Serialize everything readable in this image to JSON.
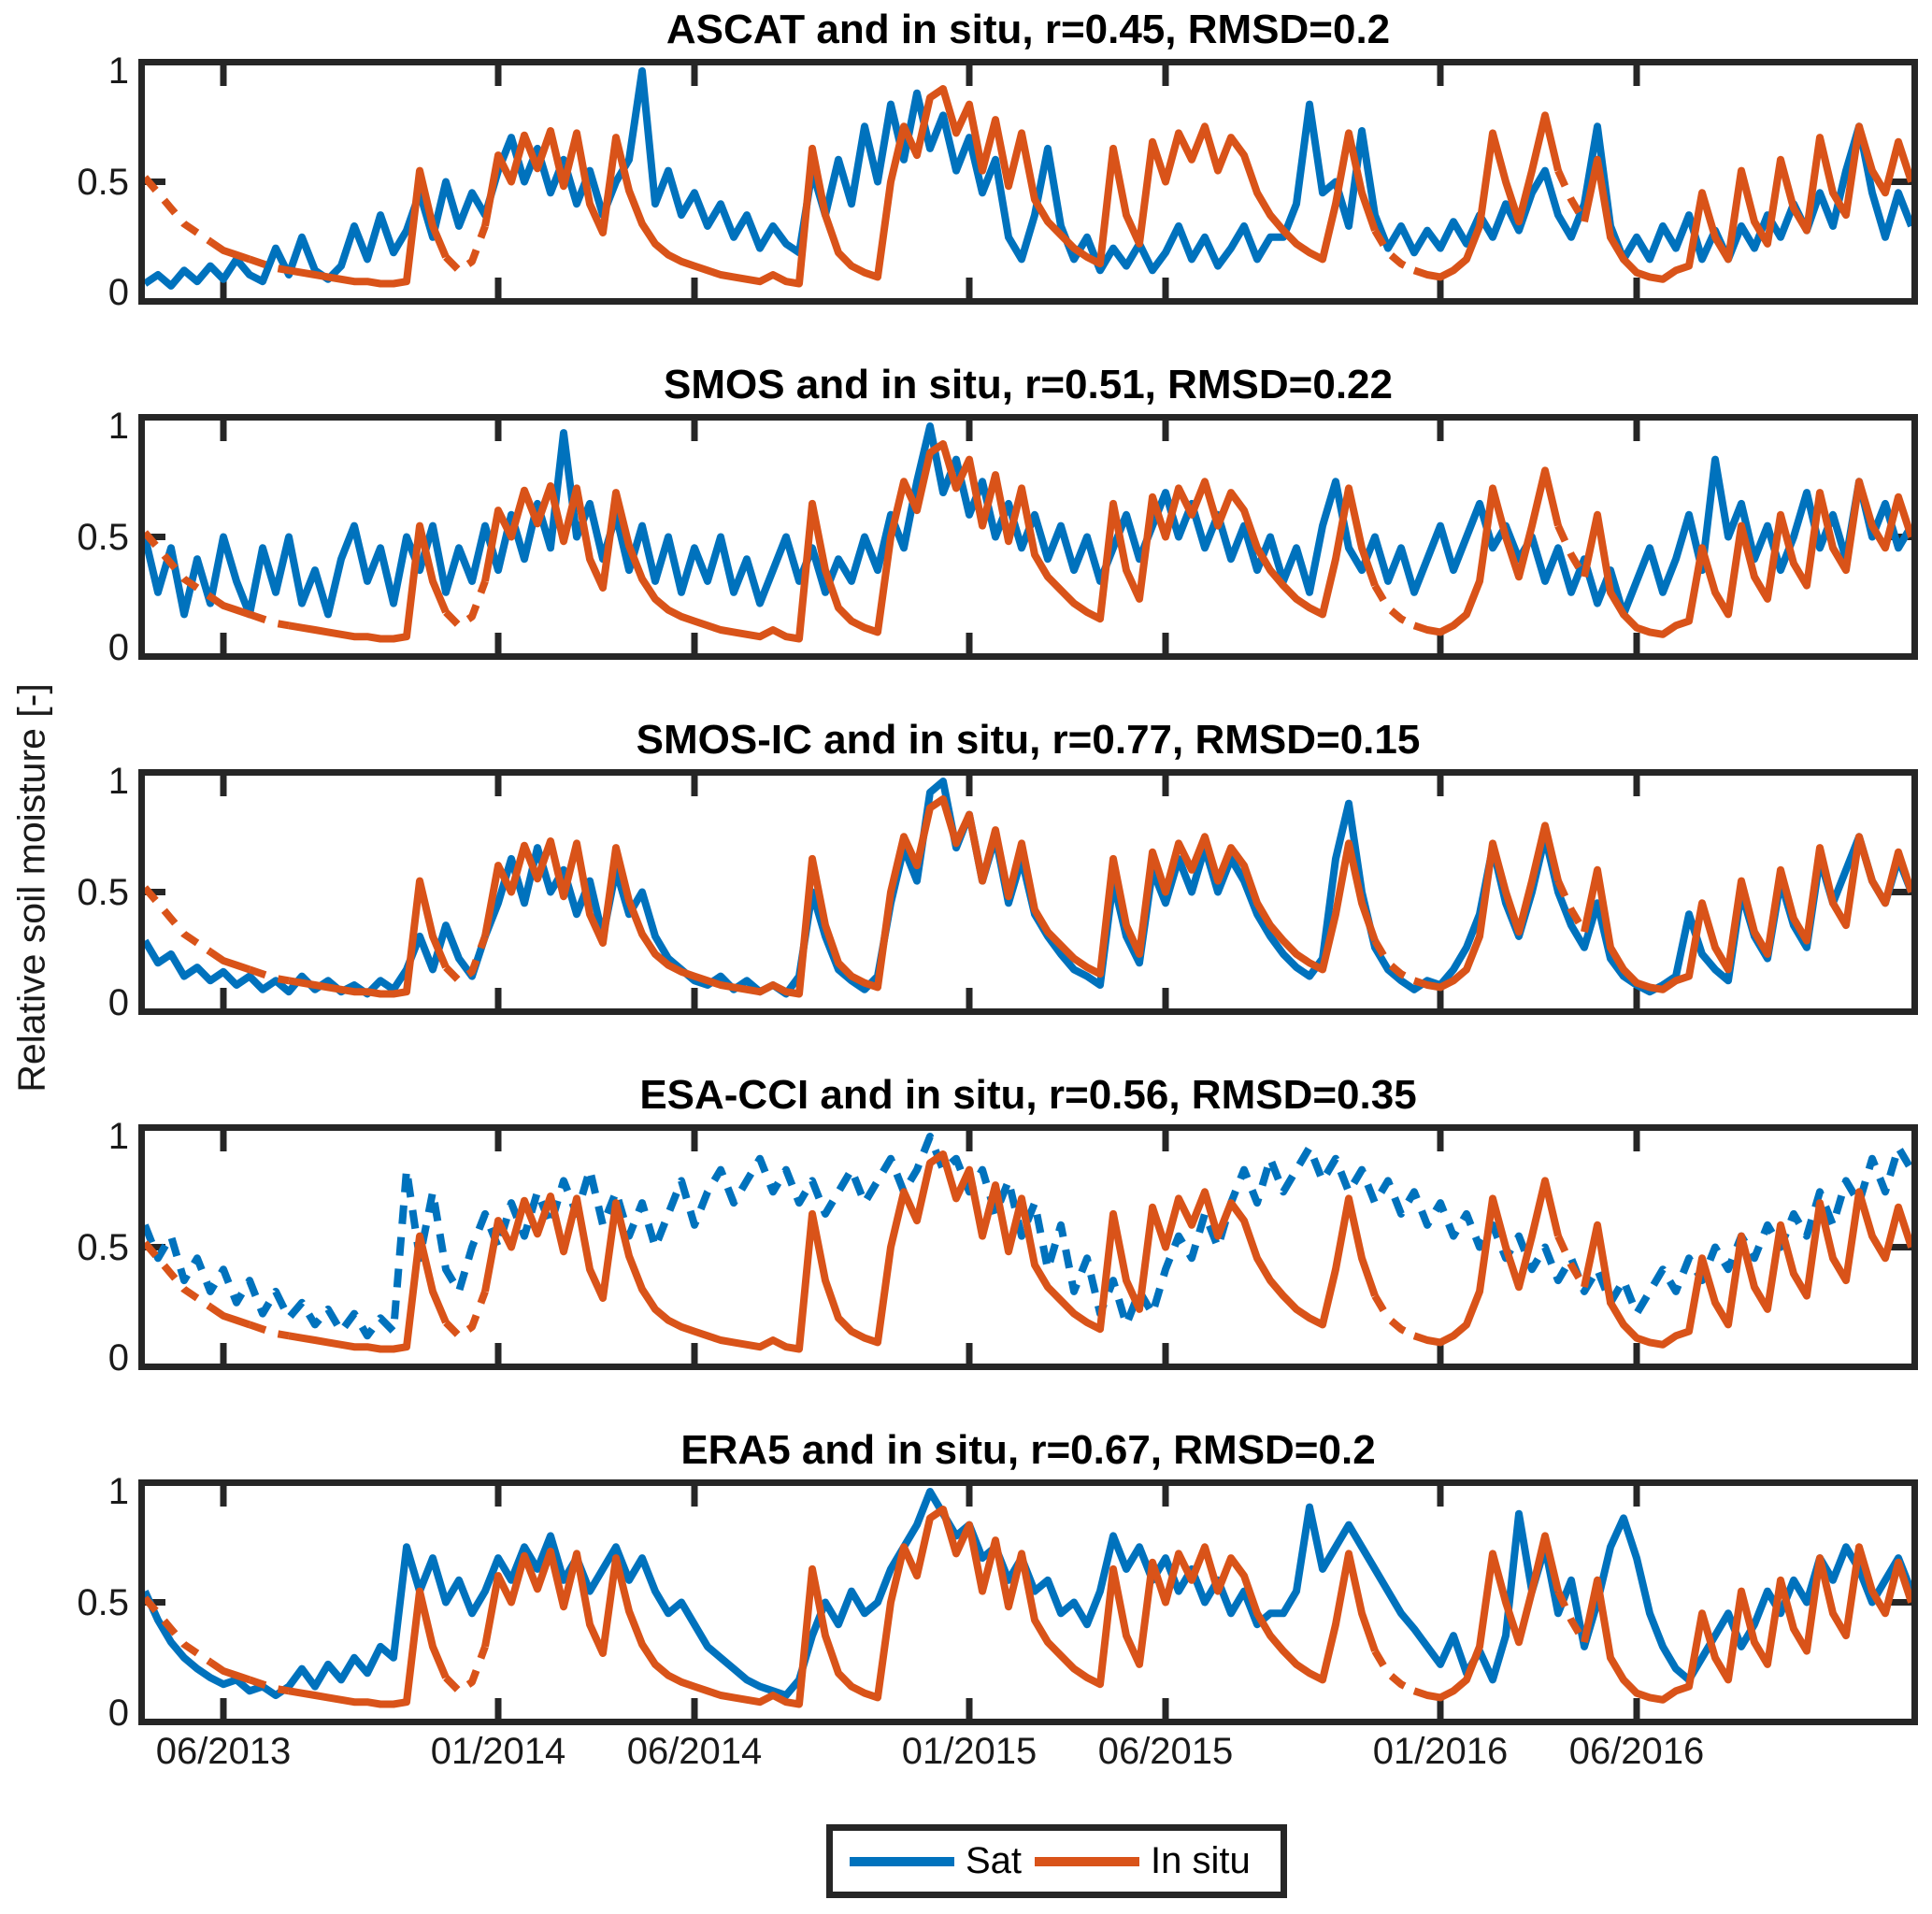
{
  "figure": {
    "y_axis_label": "Relative soil moisture [-]",
    "y_tick_labels": [
      "1",
      "0.5",
      "0"
    ],
    "y_tick_values": [
      1,
      0.5,
      0
    ]
  },
  "legend": {
    "sat_label": "Sat",
    "insitu_label": "In situ"
  },
  "colors": {
    "sat_line": "#0072BD",
    "insitu_line": "#D95319",
    "axes_frame": "#262626",
    "text": "#000000",
    "background": "#FFFFFF"
  },
  "chart_data": {
    "type": "line",
    "x_unit": "months since 2013-04 (x axis spans ~04/2013 to ~12/2016)",
    "x_range": [
      0,
      45
    ],
    "y_range": [
      0,
      1
    ],
    "grid": false,
    "legend_position": "below-figure",
    "x_ticks": [
      {
        "t": 2,
        "label": "06/2013"
      },
      {
        "t": 9,
        "label": "01/2014"
      },
      {
        "t": 14,
        "label": "06/2014"
      },
      {
        "t": 21,
        "label": "01/2015"
      },
      {
        "t": 26,
        "label": "06/2015"
      },
      {
        "t": 33,
        "label": "01/2016"
      },
      {
        "t": 38,
        "label": "06/2016"
      }
    ],
    "x_tick_labels": [
      "06/2013",
      "01/2014",
      "06/2014",
      "01/2015",
      "06/2015",
      "01/2016",
      "06/2016"
    ],
    "sample_step_months": 0.3333,
    "series_legend": [
      "Sat",
      "In situ"
    ],
    "subplots": [
      {
        "title": "ASCAT and in situ, r=0.45, RMSD=0.2",
        "r": 0.45,
        "rmsd": 0.2,
        "sat_series": "ascat",
        "sat_dashed": false
      },
      {
        "title": "SMOS and in situ, r=0.51, RMSD=0.22",
        "r": 0.51,
        "rmsd": 0.22,
        "sat_series": "smos",
        "sat_dashed": false
      },
      {
        "title": "SMOS-IC and in situ,  r=0.77, RMSD=0.15",
        "r": 0.77,
        "rmsd": 0.15,
        "sat_series": "smos_ic",
        "sat_dashed": false
      },
      {
        "title": "ESA-CCI and in situ, r=0.56, RMSD=0.35",
        "r": 0.56,
        "rmsd": 0.35,
        "sat_series": "esa_cci",
        "sat_dashed": true
      },
      {
        "title": "ERA5 and in situ, r=0.67, RMSD=0.2",
        "r": 0.67,
        "rmsd": 0.2,
        "sat_series": "era5",
        "sat_dashed": false
      }
    ],
    "in_situ_dash_segments": [
      [
        0,
        1.8
      ],
      [
        2.6,
        3.5
      ],
      [
        7.7,
        8.5
      ],
      [
        31.2,
        32.2
      ],
      [
        36.0,
        36.8
      ]
    ],
    "series_values": {
      "in_situ": [
        0.52,
        0.45,
        0.38,
        0.31,
        0.27,
        0.23,
        0.19,
        0.17,
        0.15,
        0.13,
        0.11,
        0.1,
        0.09,
        0.08,
        0.07,
        0.06,
        0.05,
        0.05,
        0.04,
        0.04,
        0.05,
        0.55,
        0.3,
        0.16,
        0.1,
        0.14,
        0.3,
        0.62,
        0.5,
        0.71,
        0.56,
        0.73,
        0.48,
        0.72,
        0.4,
        0.27,
        0.7,
        0.46,
        0.31,
        0.22,
        0.17,
        0.14,
        0.12,
        0.1,
        0.08,
        0.07,
        0.06,
        0.05,
        0.08,
        0.05,
        0.04,
        0.65,
        0.35,
        0.18,
        0.12,
        0.09,
        0.07,
        0.5,
        0.75,
        0.62,
        0.88,
        0.92,
        0.72,
        0.85,
        0.55,
        0.78,
        0.48,
        0.72,
        0.42,
        0.32,
        0.26,
        0.2,
        0.16,
        0.13,
        0.65,
        0.35,
        0.22,
        0.68,
        0.5,
        0.72,
        0.6,
        0.75,
        0.55,
        0.7,
        0.62,
        0.45,
        0.35,
        0.28,
        0.22,
        0.18,
        0.15,
        0.4,
        0.72,
        0.45,
        0.28,
        0.18,
        0.13,
        0.1,
        0.08,
        0.07,
        0.1,
        0.15,
        0.3,
        0.72,
        0.5,
        0.32,
        0.55,
        0.8,
        0.55,
        0.42,
        0.32,
        0.6,
        0.25,
        0.15,
        0.09,
        0.07,
        0.06,
        0.1,
        0.12,
        0.45,
        0.25,
        0.15,
        0.55,
        0.32,
        0.22,
        0.6,
        0.38,
        0.28,
        0.7,
        0.45,
        0.35,
        0.75,
        0.55,
        0.45,
        0.68,
        0.5
      ],
      "ascat": [
        0.04,
        0.08,
        0.03,
        0.1,
        0.05,
        0.12,
        0.06,
        0.15,
        0.08,
        0.05,
        0.2,
        0.08,
        0.25,
        0.1,
        0.06,
        0.12,
        0.3,
        0.15,
        0.35,
        0.18,
        0.28,
        0.45,
        0.25,
        0.5,
        0.3,
        0.45,
        0.35,
        0.55,
        0.7,
        0.5,
        0.65,
        0.45,
        0.6,
        0.4,
        0.55,
        0.35,
        0.5,
        0.6,
        1.0,
        0.4,
        0.55,
        0.35,
        0.45,
        0.3,
        0.4,
        0.25,
        0.35,
        0.2,
        0.3,
        0.22,
        0.18,
        0.55,
        0.35,
        0.6,
        0.4,
        0.75,
        0.5,
        0.85,
        0.6,
        0.9,
        0.65,
        0.8,
        0.55,
        0.7,
        0.45,
        0.6,
        0.25,
        0.15,
        0.35,
        0.65,
        0.3,
        0.15,
        0.25,
        0.1,
        0.2,
        0.12,
        0.22,
        0.1,
        0.18,
        0.3,
        0.15,
        0.25,
        0.12,
        0.2,
        0.3,
        0.15,
        0.25,
        0.25,
        0.4,
        0.85,
        0.45,
        0.5,
        0.3,
        0.73,
        0.35,
        0.2,
        0.3,
        0.18,
        0.28,
        0.2,
        0.32,
        0.22,
        0.35,
        0.25,
        0.4,
        0.28,
        0.45,
        0.55,
        0.35,
        0.25,
        0.4,
        0.75,
        0.3,
        0.15,
        0.25,
        0.15,
        0.3,
        0.2,
        0.35,
        0.15,
        0.28,
        0.15,
        0.3,
        0.2,
        0.35,
        0.25,
        0.4,
        0.28,
        0.45,
        0.3,
        0.55,
        0.75,
        0.45,
        0.25,
        0.45,
        0.3
      ],
      "smos": [
        0.5,
        0.25,
        0.45,
        0.15,
        0.4,
        0.2,
        0.5,
        0.3,
        0.15,
        0.45,
        0.25,
        0.5,
        0.2,
        0.35,
        0.15,
        0.4,
        0.55,
        0.3,
        0.45,
        0.2,
        0.5,
        0.35,
        0.55,
        0.25,
        0.45,
        0.3,
        0.55,
        0.35,
        0.6,
        0.4,
        0.65,
        0.45,
        0.97,
        0.5,
        0.65,
        0.4,
        0.6,
        0.35,
        0.55,
        0.3,
        0.5,
        0.25,
        0.45,
        0.3,
        0.5,
        0.25,
        0.4,
        0.2,
        0.35,
        0.5,
        0.3,
        0.45,
        0.25,
        0.4,
        0.3,
        0.5,
        0.35,
        0.6,
        0.45,
        0.75,
        1.0,
        0.7,
        0.85,
        0.6,
        0.75,
        0.5,
        0.65,
        0.45,
        0.6,
        0.4,
        0.55,
        0.35,
        0.5,
        0.3,
        0.45,
        0.6,
        0.4,
        0.55,
        0.7,
        0.5,
        0.65,
        0.45,
        0.6,
        0.4,
        0.55,
        0.35,
        0.5,
        0.3,
        0.45,
        0.25,
        0.55,
        0.75,
        0.45,
        0.35,
        0.5,
        0.3,
        0.45,
        0.25,
        0.4,
        0.55,
        0.35,
        0.5,
        0.65,
        0.45,
        0.55,
        0.4,
        0.5,
        0.3,
        0.45,
        0.25,
        0.4,
        0.2,
        0.35,
        0.15,
        0.3,
        0.45,
        0.25,
        0.4,
        0.6,
        0.35,
        0.85,
        0.5,
        0.65,
        0.4,
        0.55,
        0.35,
        0.5,
        0.7,
        0.45,
        0.6,
        0.4,
        0.75,
        0.5,
        0.65,
        0.45,
        0.55
      ],
      "smos_ic": [
        0.28,
        0.18,
        0.22,
        0.12,
        0.16,
        0.1,
        0.14,
        0.08,
        0.12,
        0.06,
        0.1,
        0.05,
        0.12,
        0.06,
        0.1,
        0.05,
        0.08,
        0.04,
        0.1,
        0.06,
        0.15,
        0.3,
        0.15,
        0.35,
        0.2,
        0.12,
        0.3,
        0.45,
        0.65,
        0.45,
        0.7,
        0.5,
        0.6,
        0.4,
        0.55,
        0.3,
        0.6,
        0.4,
        0.5,
        0.3,
        0.2,
        0.15,
        0.1,
        0.08,
        0.12,
        0.06,
        0.1,
        0.05,
        0.08,
        0.04,
        0.12,
        0.5,
        0.3,
        0.15,
        0.1,
        0.06,
        0.12,
        0.45,
        0.7,
        0.55,
        0.95,
        1.0,
        0.7,
        0.85,
        0.55,
        0.75,
        0.45,
        0.65,
        0.4,
        0.3,
        0.22,
        0.15,
        0.12,
        0.08,
        0.55,
        0.3,
        0.18,
        0.6,
        0.45,
        0.65,
        0.5,
        0.7,
        0.5,
        0.65,
        0.55,
        0.4,
        0.3,
        0.22,
        0.16,
        0.12,
        0.2,
        0.65,
        0.9,
        0.5,
        0.25,
        0.15,
        0.1,
        0.06,
        0.1,
        0.08,
        0.15,
        0.25,
        0.4,
        0.7,
        0.45,
        0.3,
        0.5,
        0.75,
        0.5,
        0.35,
        0.25,
        0.45,
        0.2,
        0.12,
        0.08,
        0.05,
        0.08,
        0.12,
        0.4,
        0.22,
        0.15,
        0.1,
        0.5,
        0.3,
        0.2,
        0.55,
        0.35,
        0.25,
        0.65,
        0.45,
        0.6,
        0.75,
        0.55,
        0.45,
        0.65,
        0.5
      ],
      "esa_cci": [
        0.6,
        0.45,
        0.55,
        0.35,
        0.45,
        0.3,
        0.4,
        0.25,
        0.35,
        0.2,
        0.3,
        0.18,
        0.25,
        0.15,
        0.22,
        0.12,
        0.2,
        0.1,
        0.18,
        0.12,
        0.85,
        0.45,
        0.75,
        0.4,
        0.3,
        0.5,
        0.65,
        0.5,
        0.7,
        0.55,
        0.75,
        0.6,
        0.8,
        0.65,
        0.85,
        0.6,
        0.75,
        0.55,
        0.7,
        0.5,
        0.65,
        0.8,
        0.6,
        0.75,
        0.85,
        0.7,
        0.8,
        0.9,
        0.75,
        0.85,
        0.7,
        0.8,
        0.65,
        0.75,
        0.85,
        0.7,
        0.8,
        0.9,
        0.75,
        0.85,
        1.0,
        0.85,
        0.9,
        0.75,
        0.85,
        0.65,
        0.8,
        0.55,
        0.7,
        0.4,
        0.6,
        0.3,
        0.45,
        0.2,
        0.35,
        0.15,
        0.3,
        0.2,
        0.4,
        0.55,
        0.45,
        0.65,
        0.5,
        0.7,
        0.85,
        0.7,
        0.9,
        0.75,
        0.85,
        0.95,
        0.8,
        0.9,
        0.75,
        0.85,
        0.7,
        0.8,
        0.65,
        0.75,
        0.6,
        0.7,
        0.55,
        0.65,
        0.5,
        0.6,
        0.45,
        0.55,
        0.4,
        0.5,
        0.35,
        0.45,
        0.3,
        0.4,
        0.25,
        0.35,
        0.2,
        0.3,
        0.4,
        0.3,
        0.45,
        0.35,
        0.5,
        0.4,
        0.55,
        0.45,
        0.6,
        0.5,
        0.65,
        0.55,
        0.75,
        0.6,
        0.8,
        0.7,
        0.9,
        0.75,
        0.95,
        0.85
      ],
      "era5": [
        0.55,
        0.42,
        0.32,
        0.25,
        0.2,
        0.16,
        0.13,
        0.15,
        0.1,
        0.12,
        0.08,
        0.12,
        0.2,
        0.12,
        0.22,
        0.15,
        0.25,
        0.18,
        0.3,
        0.25,
        0.75,
        0.55,
        0.7,
        0.5,
        0.6,
        0.45,
        0.55,
        0.7,
        0.6,
        0.75,
        0.65,
        0.8,
        0.6,
        0.7,
        0.55,
        0.65,
        0.75,
        0.6,
        0.7,
        0.55,
        0.45,
        0.5,
        0.4,
        0.3,
        0.25,
        0.2,
        0.15,
        0.12,
        0.1,
        0.08,
        0.15,
        0.35,
        0.5,
        0.4,
        0.55,
        0.45,
        0.5,
        0.65,
        0.75,
        0.85,
        1.0,
        0.9,
        0.8,
        0.85,
        0.7,
        0.75,
        0.6,
        0.7,
        0.55,
        0.6,
        0.45,
        0.5,
        0.4,
        0.55,
        0.8,
        0.65,
        0.75,
        0.6,
        0.7,
        0.55,
        0.65,
        0.5,
        0.6,
        0.45,
        0.55,
        0.4,
        0.45,
        0.45,
        0.55,
        0.93,
        0.65,
        0.75,
        0.85,
        0.75,
        0.65,
        0.55,
        0.45,
        0.38,
        0.3,
        0.22,
        0.35,
        0.18,
        0.28,
        0.15,
        0.35,
        0.9,
        0.55,
        0.75,
        0.45,
        0.6,
        0.3,
        0.5,
        0.75,
        0.88,
        0.7,
        0.45,
        0.3,
        0.2,
        0.15,
        0.25,
        0.35,
        0.45,
        0.3,
        0.4,
        0.55,
        0.45,
        0.6,
        0.5,
        0.7,
        0.6,
        0.75,
        0.65,
        0.5,
        0.6,
        0.7,
        0.55
      ]
    }
  }
}
